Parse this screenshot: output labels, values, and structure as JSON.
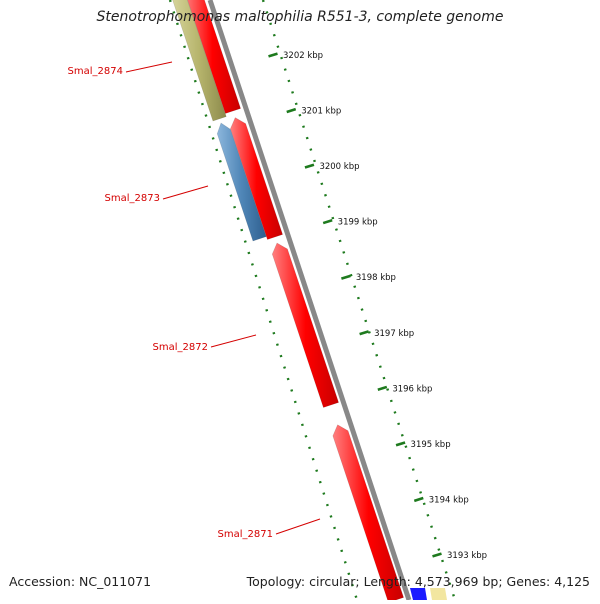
{
  "title": "Stenotrophomonas maltophilia R551-3, complete genome",
  "footer": {
    "accession": "Accession: NC_011071",
    "summary": "Topology: circular; Length: 4,573,969 bp; Genes: 4,125"
  },
  "genes": [
    {
      "label": "Smal_2874",
      "fill_color": "#b6b46c"
    },
    {
      "label": "Smal_2873",
      "fill_color": "#4f86b7"
    },
    {
      "label": "Smal_2872",
      "fill_color": "#ff0000"
    },
    {
      "label": "Smal_2871",
      "fill_color": "#ff0000"
    }
  ],
  "scale_ticks": [
    "3202 kbp",
    "3201 kbp",
    "3200 kbp",
    "3199 kbp",
    "3198 kbp",
    "3197 kbp",
    "3196 kbp",
    "3195 kbp",
    "3194 kbp",
    "3193 kbp"
  ],
  "colors": {
    "cds": "#ff0000",
    "gene_label": "#d40000",
    "tick": "#1e7a1e",
    "backbone": "#888888",
    "highlight_blue": "#1a1aff",
    "highlight_pale": "#f2e6a0"
  }
}
